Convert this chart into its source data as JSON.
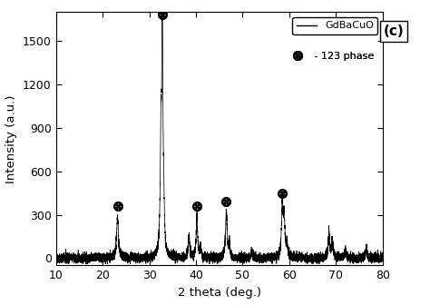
{
  "xlabel": "2 theta (deg.)",
  "ylabel": "Intensity (a.u.)",
  "xlim": [
    10,
    80
  ],
  "ylim": [
    -50,
    1700
  ],
  "yticks": [
    0,
    300,
    600,
    900,
    1200,
    1500
  ],
  "xticks": [
    10,
    20,
    30,
    40,
    50,
    60,
    70,
    80
  ],
  "label_c": "(c)",
  "legend_line_label": "GdBaCuO",
  "legend_symbol_label": " - 123 phase",
  "line_color": "black",
  "background_color": "white",
  "peak_data": [
    [
      23.2,
      290,
      0.22
    ],
    [
      32.5,
      800,
      0.18
    ],
    [
      32.8,
      1620,
      0.13
    ],
    [
      33.1,
      280,
      0.18
    ],
    [
      38.5,
      160,
      0.18
    ],
    [
      40.2,
      295,
      0.18
    ],
    [
      41.0,
      75,
      0.16
    ],
    [
      46.5,
      325,
      0.2
    ],
    [
      47.2,
      85,
      0.16
    ],
    [
      52.0,
      55,
      0.18
    ],
    [
      58.5,
      375,
      0.2
    ],
    [
      58.9,
      255,
      0.18
    ],
    [
      59.5,
      85,
      0.18
    ],
    [
      68.5,
      170,
      0.2
    ],
    [
      69.2,
      125,
      0.18
    ],
    [
      72.0,
      55,
      0.18
    ],
    [
      76.5,
      75,
      0.2
    ]
  ],
  "circle_x_markers": [
    23.2,
    32.8,
    40.2,
    46.5,
    58.5
  ],
  "circle_y_offsets": [
    65,
    65,
    65,
    65,
    70
  ],
  "noise_level": 15,
  "noise_seed": 42
}
